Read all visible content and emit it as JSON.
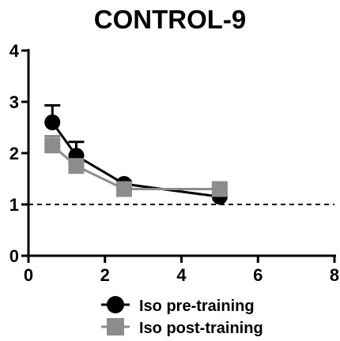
{
  "chart_data": {
    "type": "line",
    "title": "CONTROL-9",
    "xlabel": "",
    "ylabel": "",
    "xlim": [
      0,
      8
    ],
    "ylim": [
      0,
      4
    ],
    "xticks": [
      0,
      2,
      4,
      6,
      8
    ],
    "yticks": [
      0,
      1,
      2,
      3,
      4
    ],
    "reference_line": {
      "y": 1,
      "style": "dashed",
      "color": "#000000"
    },
    "grid": false,
    "legend_position": "bottom",
    "series": [
      {
        "name": "Iso pre-training",
        "marker": "circle",
        "color": "#000000",
        "x": [
          0.625,
          1.25,
          2.5,
          5.0
        ],
        "y": [
          2.6,
          1.95,
          1.4,
          1.15
        ],
        "error": [
          0.33,
          0.27,
          0.05,
          0.05
        ]
      },
      {
        "name": "Iso post-training",
        "marker": "square",
        "color": "#8c8c8c",
        "x": [
          0.625,
          1.25,
          2.5,
          5.0
        ],
        "y": [
          2.15,
          1.75,
          1.3,
          1.3
        ],
        "error": [
          0.18,
          0.1,
          0.05,
          0.05
        ]
      }
    ]
  }
}
